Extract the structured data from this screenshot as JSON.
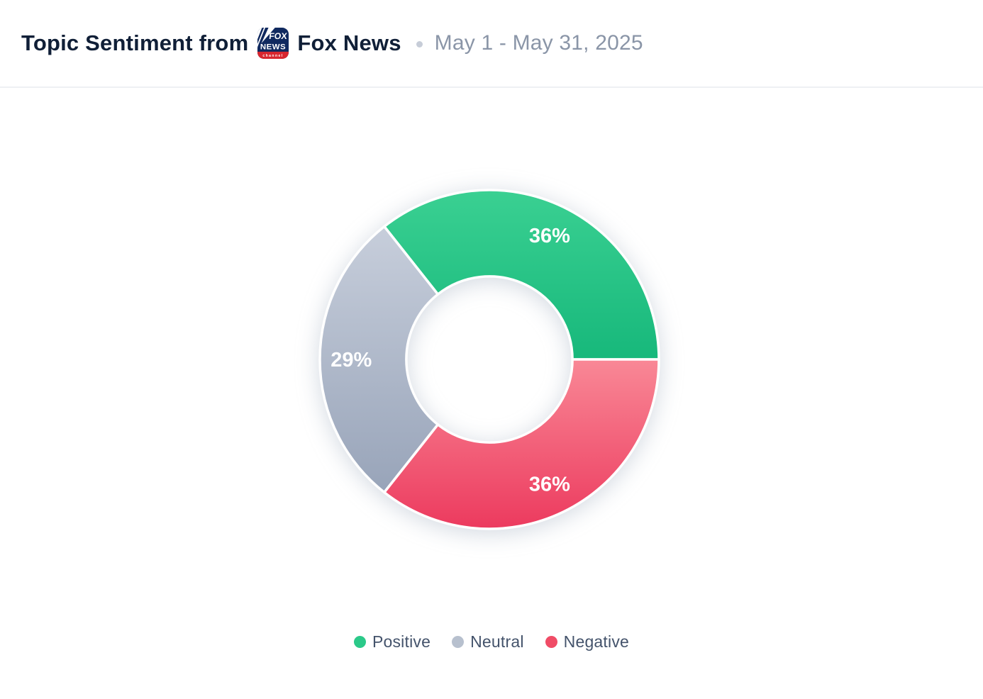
{
  "header": {
    "title_prefix": "Topic Sentiment from",
    "source_name": "Fox News",
    "date_range": "May 1 - May 31, 2025",
    "logo": {
      "name": "fox-news-channel-logo",
      "line1": "FOX",
      "line2": "NEWS",
      "line3": "channel",
      "navy": "#10295f",
      "red": "#d8262f"
    }
  },
  "chart_data": {
    "type": "pie",
    "subtype": "donut",
    "title": "Topic Sentiment from Fox News",
    "date_range": "May 1 - May 31, 2025",
    "categories": [
      "Positive",
      "Neutral",
      "Negative"
    ],
    "values": [
      36,
      29,
      36
    ],
    "labels": [
      "36%",
      "29%",
      "36%"
    ],
    "unit": "%",
    "start_angle_deg": 0,
    "direction": "counterclockwise",
    "inner_radius_ratio": 0.49,
    "label_radius_ratio": 0.815,
    "legend_position": "bottom",
    "slice_separator_color": "#ffffff",
    "colors": {
      "Positive": {
        "start": "#3ad092",
        "end": "#17b87b",
        "legend": "#2bc989"
      },
      "Neutral": {
        "start": "#c7cedb",
        "end": "#98a4b9",
        "legend": "#b7c0ce"
      },
      "Negative": {
        "start": "#f98896",
        "end": "#ec3a5e",
        "legend": "#f04c66"
      }
    }
  }
}
